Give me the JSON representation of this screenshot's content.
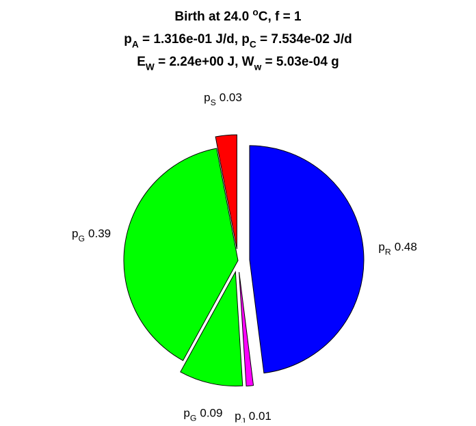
{
  "chart_data": {
    "type": "pie",
    "title": [
      [
        {
          "text": "Birth at 24.0 "
        },
        {
          "sup": "o"
        },
        {
          "text": "C, f = 1"
        }
      ],
      [
        {
          "text": "p"
        },
        {
          "sub": "A"
        },
        {
          "text": " = 1.316e-01 J/d, p"
        },
        {
          "sub": "C"
        },
        {
          "text": " = 7.534e-02 J/d"
        }
      ],
      [
        {
          "text": "E"
        },
        {
          "sub": "W"
        },
        {
          "text": " = 2.24e+00 J, W"
        },
        {
          "sub": "w"
        },
        {
          "text": " = 5.03e-04 g"
        }
      ]
    ],
    "categories": [
      {
        "text": "p",
        "sub": "R"
      },
      {
        "text": "p",
        "sub": "J"
      },
      {
        "text": "p",
        "sub": "G"
      },
      {
        "text": "p",
        "sub": "G"
      },
      {
        "text": "p",
        "sub": "S"
      }
    ],
    "values": [
      0.48,
      0.01,
      0.09,
      0.39,
      0.03
    ],
    "colors": [
      "#0000ff",
      "#ff00ff",
      "#00ff00",
      "#00ff00",
      "#ff0000"
    ],
    "explode": [
      1,
      1,
      1,
      0,
      1
    ],
    "start": "top",
    "direction": "clockwise"
  }
}
